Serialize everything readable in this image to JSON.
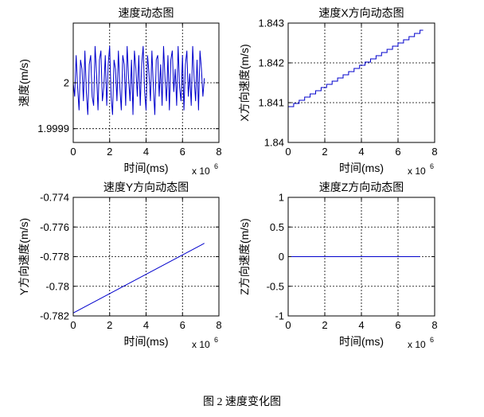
{
  "figure_caption": "图 2  速度变化图",
  "chart_data": [
    {
      "type": "line",
      "title": "速度动态图",
      "xlabel": "时间(ms)",
      "ylabel": "速度(m/s)",
      "x_exponent_label": "x 10",
      "x_exponent_power": "6",
      "xlim": [
        0,
        8
      ],
      "ylim": [
        1.99987,
        2.00013
      ],
      "xticks": [
        0,
        2,
        4,
        6,
        8
      ],
      "xtick_labels": [
        "0",
        "2",
        "4",
        "6",
        "8"
      ],
      "yticks": [
        1.9999,
        2
      ],
      "ytick_labels": [
        "1.9999",
        "2"
      ],
      "grid": true,
      "color": "#0000cc",
      "series": [
        {
          "x": [
            0.0,
            0.08,
            0.16,
            0.24,
            0.32,
            0.4,
            0.48,
            0.56,
            0.64,
            0.72,
            0.8,
            0.88,
            0.96,
            1.04,
            1.12,
            1.2,
            1.28,
            1.36,
            1.44,
            1.52,
            1.6,
            1.68,
            1.76,
            1.84,
            1.92,
            2.0,
            2.08,
            2.16,
            2.24,
            2.32,
            2.4,
            2.48,
            2.56,
            2.64,
            2.72,
            2.8,
            2.88,
            2.96,
            3.04,
            3.12,
            3.2,
            3.28,
            3.36,
            3.44,
            3.52,
            3.6,
            3.68,
            3.76,
            3.84,
            3.92,
            4.0,
            4.08,
            4.16,
            4.24,
            4.32,
            4.4,
            4.48,
            4.56,
            4.64,
            4.72,
            4.8,
            4.88,
            4.96,
            5.04,
            5.12,
            5.2,
            5.28,
            5.36,
            5.44,
            5.52,
            5.6,
            5.68,
            5.76,
            5.84,
            5.92,
            6.0,
            6.08,
            6.16,
            6.24,
            6.32,
            6.4,
            6.48,
            6.56,
            6.64,
            6.72,
            6.8,
            6.88,
            6.96,
            7.04,
            7.12,
            7.2
          ],
          "y": [
            2.0,
            1.99997,
            2.00006,
            1.99999,
            1.99994,
            2.00005,
            2.00003,
            1.99996,
            2.00007,
            1.99998,
            1.99993,
            2.00004,
            2.00006,
            1.99997,
            1.99995,
            2.00008,
            2.00002,
            1.99994,
            2.00005,
            2.00007,
            1.99996,
            1.99999,
            2.00006,
            1.99995,
            2.00004,
            2.00008,
            1.99997,
            1.99993,
            2.00005,
            2.00003,
            1.99996,
            2.00007,
            1.99999,
            1.99994,
            2.00006,
            2.00004,
            1.99995,
            2.00008,
            2.00001,
            1.99996,
            2.00005,
            1.99993,
            2.00007,
            2.00003,
            1.99997,
            2.00006,
            1.99995,
            2.00004,
            2.00008,
            1.99998,
            1.99994,
            2.00006,
            2.00002,
            1.99996,
            2.00007,
            1.99999,
            1.99993,
            2.00005,
            2.00006,
            1.99997,
            2.00004,
            1.99995,
            2.00008,
            2.00001,
            1.99996,
            2.00006,
            1.99994,
            2.00005,
            2.00007,
            1.99998,
            2.00003,
            1.99995,
            2.00008,
            1.99999,
            1.99996,
            2.00006,
            1.99994,
            2.00004,
            2.00007,
            1.99997,
            2.00002,
            1.99995,
            2.00008,
            2.00001,
            1.99996,
            2.00005,
            1.99994,
            2.00007,
            2.00003,
            1.99997,
            2.00001
          ]
        }
      ]
    },
    {
      "type": "line",
      "title": "速度X方向动态图",
      "xlabel": "时间(ms)",
      "ylabel": "X方向速度(m/s)",
      "x_exponent_label": "x 10",
      "x_exponent_power": "6",
      "xlim": [
        0,
        8
      ],
      "ylim": [
        1.84,
        1.843
      ],
      "xticks": [
        0,
        2,
        4,
        6,
        8
      ],
      "xtick_labels": [
        "0",
        "2",
        "4",
        "6",
        "8"
      ],
      "yticks": [
        1.84,
        1.841,
        1.842,
        1.843
      ],
      "ytick_labels": [
        "1.84",
        "1.841",
        "1.842",
        "1.843"
      ],
      "grid": true,
      "color": "#0000cc",
      "series": [
        {
          "step": true,
          "x": [
            0.0,
            0.3,
            0.6,
            0.9,
            1.2,
            1.5,
            1.8,
            2.1,
            2.4,
            2.7,
            3.0,
            3.3,
            3.6,
            3.9,
            4.2,
            4.5,
            4.8,
            5.1,
            5.4,
            5.7,
            6.0,
            6.3,
            6.6,
            6.9,
            7.2
          ],
          "y": [
            1.8409,
            1.84098,
            1.84106,
            1.84114,
            1.84122,
            1.8413,
            1.84138,
            1.84146,
            1.84154,
            1.84162,
            1.8417,
            1.84178,
            1.84186,
            1.84194,
            1.84202,
            1.8421,
            1.84218,
            1.84226,
            1.84234,
            1.84242,
            1.8425,
            1.84258,
            1.84266,
            1.84274,
            1.84282
          ]
        }
      ]
    },
    {
      "type": "line",
      "title": "速度Y方向动态图",
      "xlabel": "时间(ms)",
      "ylabel": "Y方向速度(m/s)",
      "x_exponent_label": "x 10",
      "x_exponent_power": "6",
      "xlim": [
        0,
        8
      ],
      "ylim": [
        -0.782,
        -0.774
      ],
      "xticks": [
        0,
        2,
        4,
        6,
        8
      ],
      "xtick_labels": [
        "0",
        "2",
        "4",
        "6",
        "8"
      ],
      "yticks": [
        -0.782,
        -0.78,
        -0.778,
        -0.776,
        -0.774
      ],
      "ytick_labels": [
        "-0.782",
        "-0.78",
        "-0.778",
        "-0.776",
        "-0.774"
      ],
      "grid": true,
      "color": "#0000cc",
      "series": [
        {
          "x": [
            0,
            7.2
          ],
          "y": [
            -0.7818,
            -0.7771
          ]
        }
      ]
    },
    {
      "type": "line",
      "title": "速度Z方向动态图",
      "xlabel": "时间(ms)",
      "ylabel": "Z方向速度(m/s)",
      "x_exponent_label": "x 10",
      "x_exponent_power": "6",
      "xlim": [
        0,
        8
      ],
      "ylim": [
        -1,
        1
      ],
      "xticks": [
        0,
        2,
        4,
        6,
        8
      ],
      "xtick_labels": [
        "0",
        "2",
        "4",
        "6",
        "8"
      ],
      "yticks": [
        -1,
        -0.5,
        0,
        0.5,
        1
      ],
      "ytick_labels": [
        "-1",
        "-0.5",
        "0",
        "0.5",
        "1"
      ],
      "grid": true,
      "color": "#0000cc",
      "series": [
        {
          "x": [
            0,
            7.2
          ],
          "y": [
            0,
            0
          ]
        }
      ]
    }
  ]
}
